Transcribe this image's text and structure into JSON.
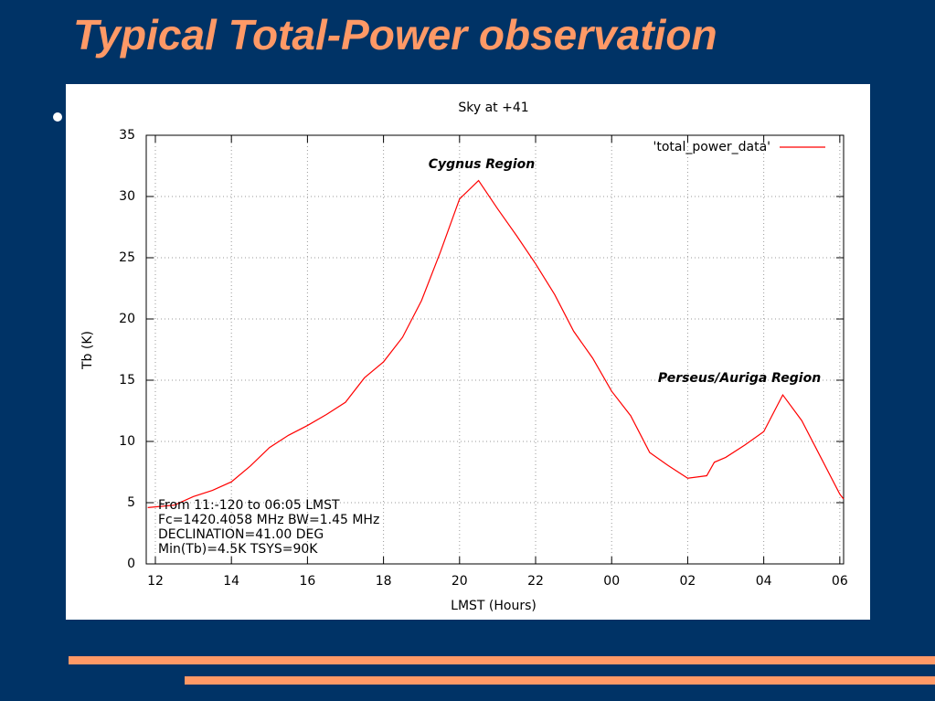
{
  "slide": {
    "title": "Typical Total-Power observation"
  },
  "chart_data": {
    "type": "line",
    "title": "Sky at +41",
    "x_label": "LMST (Hours)",
    "y_label": "Tb (K)",
    "annotations": [
      "Cygnus Region",
      "Perseus/Auriga Region"
    ],
    "notes": [
      "From 11:-120 to 06:05 LMST",
      "Fc=1420.4058 MHz BW=1.45 MHz",
      "DECLINATION=41.00 DEG",
      "Min(Tb)=4.5K TSYS=90K"
    ],
    "legend": "top-right",
    "grid": true,
    "xlim": [
      11.76,
      30.1
    ],
    "ylim": [
      0,
      35
    ],
    "xticks": [
      12,
      14,
      16,
      18,
      20,
      22,
      {
        "value": 24,
        "label": "00"
      },
      {
        "value": 26,
        "label": "02"
      },
      {
        "value": 28,
        "label": "04"
      },
      {
        "value": 30,
        "label": "06"
      }
    ],
    "yticks": [
      0,
      5,
      10,
      15,
      20,
      25,
      30,
      35
    ],
    "x": [
      11.8,
      12.5,
      13,
      13.5,
      14,
      14.5,
      15,
      15.5,
      16,
      16.5,
      17,
      17.5,
      18,
      18.5,
      19,
      19.5,
      20,
      20.5,
      21,
      21.5,
      22,
      22.5,
      23,
      23.5,
      24,
      24.5,
      25,
      25.5,
      26,
      26.5,
      26.7,
      27,
      27.5,
      28,
      28.5,
      29,
      29.5,
      30,
      30.1
    ],
    "series": [
      {
        "name": "'total_power_data'",
        "color": "#ff0000",
        "values": [
          4.6,
          4.8,
          5.5,
          6.0,
          6.7,
          8.0,
          9.5,
          10.5,
          11.3,
          12.2,
          13.2,
          15.2,
          16.5,
          18.5,
          21.5,
          25.5,
          29.8,
          31.3,
          29.0,
          26.8,
          24.5,
          22.0,
          19.0,
          16.8,
          14.1,
          12.1,
          9.1,
          8.0,
          7.0,
          7.2,
          8.3,
          8.7,
          9.7,
          10.8,
          13.8,
          11.7,
          8.7,
          5.7,
          5.3
        ]
      }
    ]
  }
}
